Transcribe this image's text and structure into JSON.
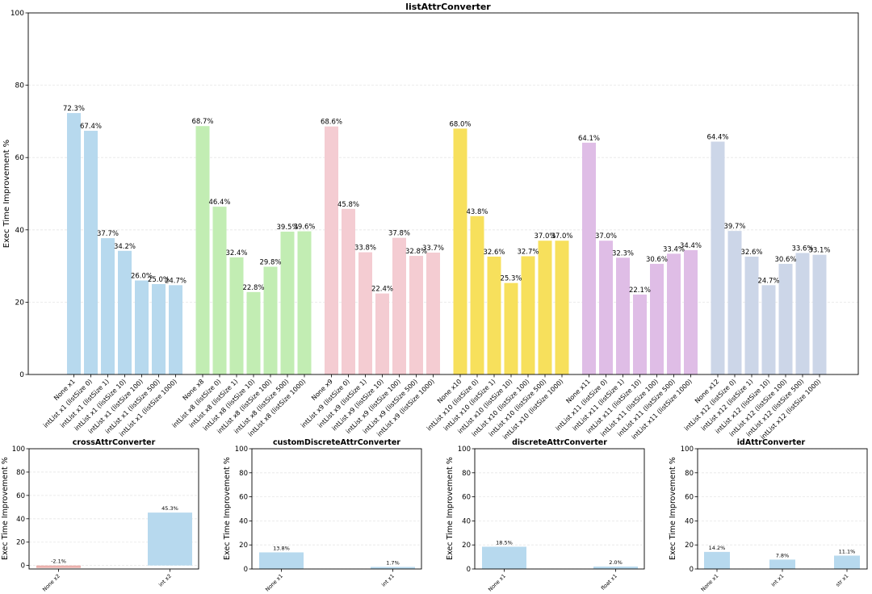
{
  "chart_data": [
    {
      "type": "bar",
      "title": "listAttrConverter",
      "xlabel": "",
      "ylabel": "Exec Time Improvement %",
      "ylim": [
        0,
        100
      ],
      "yticks": [
        "0",
        "20",
        "40",
        "60",
        "80",
        "100"
      ],
      "grid": true,
      "categories": [
        "None x1",
        "intList x1 (listSize 0)",
        "intList x1 (listSize 1)",
        "intList x1 (listSize 10)",
        "intList x1 (listSize 100)",
        "intList x1 (listSize 500)",
        "intList x1 (listSize 1000)",
        "None x8",
        "intList x8 (listSize 0)",
        "intList x8 (listSize 1)",
        "intList x8 (listSize 10)",
        "intList x8 (listSize 100)",
        "intList x8 (listSize 500)",
        "intList x8 (listSize 1000)",
        "None x9",
        "intList x9 (listSize 0)",
        "intList x9 (listSize 1)",
        "intList x9 (listSize 10)",
        "intList x9 (listSize 100)",
        "intList x9 (listSize 500)",
        "intList x9 (listSize 1000)",
        "None x10",
        "intList x10 (listSize 0)",
        "intList x10 (listSize 1)",
        "intList x10 (listSize 10)",
        "intList x10 (listSize 100)",
        "intList x10 (listSize 500)",
        "intList x10 (listSize 1000)",
        "None x11",
        "intList x11 (listSize 0)",
        "intList x11 (listSize 1)",
        "intList x11 (listSize 10)",
        "intList x11 (listSize 100)",
        "intList x11 (listSize 500)",
        "intList x11 (listSize 1000)",
        "None x12",
        "intList x12 (listSize 0)",
        "intList x12 (listSize 1)",
        "intList x12 (listSize 10)",
        "intList x12 (listSize 100)",
        "intList x12 (listSize 500)",
        "intList x12 (listSize 1000)"
      ],
      "values": [
        72.3,
        67.4,
        37.7,
        34.2,
        26.0,
        25.0,
        24.7,
        68.7,
        46.4,
        32.4,
        22.8,
        29.8,
        39.5,
        39.6,
        68.6,
        45.8,
        33.8,
        22.4,
        37.8,
        32.8,
        33.7,
        68.0,
        43.8,
        32.6,
        25.3,
        32.7,
        37.0,
        37.0,
        64.1,
        37.0,
        32.3,
        22.1,
        30.6,
        33.4,
        34.4,
        64.4,
        39.7,
        32.6,
        24.7,
        30.6,
        33.6,
        33.1
      ],
      "value_labels": [
        "72.3%",
        "67.4%",
        "37.7%",
        "34.2%",
        "26.0%",
        "25.0%",
        "24.7%",
        "68.7%",
        "46.4%",
        "32.4%",
        "22.8%",
        "29.8%",
        "39.5%",
        "39.6%",
        "68.6%",
        "45.8%",
        "33.8%",
        "22.4%",
        "37.8%",
        "32.8%",
        "33.7%",
        "68.0%",
        "43.8%",
        "32.6%",
        "25.3%",
        "32.7%",
        "37.0%",
        "37.0%",
        "64.1%",
        "37.0%",
        "32.3%",
        "22.1%",
        "30.6%",
        "33.4%",
        "34.4%",
        "64.4%",
        "39.7%",
        "32.6%",
        "24.7%",
        "30.6%",
        "33.6%",
        "33.1%"
      ],
      "group_colors": [
        "#b7d9ee",
        "#c2edb3",
        "#f4ccd2",
        "#f7e05c",
        "#dfbde6",
        "#ccd6e8"
      ],
      "group_size": 7
    },
    {
      "type": "bar",
      "title": "crossAttrConverter",
      "xlabel": "",
      "ylabel": "Exec Time Improvement %",
      "ylim": [
        -3,
        100
      ],
      "yticks": [
        "0",
        "20",
        "40",
        "60",
        "80",
        "100"
      ],
      "grid": true,
      "categories": [
        "None x2",
        "int x2"
      ],
      "values": [
        -2.1,
        45.3
      ],
      "value_labels": [
        "-2.1%",
        "45.3%"
      ],
      "colors": [
        "#ebb0ac",
        "#b7d9ee"
      ]
    },
    {
      "type": "bar",
      "title": "customDiscreteAttrConverter",
      "xlabel": "",
      "ylabel": "Exec Time Improvement %",
      "ylim": [
        0,
        100
      ],
      "yticks": [
        "0",
        "20",
        "40",
        "60",
        "80",
        "100"
      ],
      "grid": true,
      "categories": [
        "None x1",
        "int x1"
      ],
      "values": [
        13.8,
        1.7
      ],
      "value_labels": [
        "13.8%",
        "1.7%"
      ],
      "colors": [
        "#b7d9ee",
        "#b7d9ee"
      ]
    },
    {
      "type": "bar",
      "title": "discreteAttrConverter",
      "xlabel": "",
      "ylabel": "Exec Time Improvement %",
      "ylim": [
        0,
        100
      ],
      "yticks": [
        "0",
        "20",
        "40",
        "60",
        "80",
        "100"
      ],
      "grid": true,
      "categories": [
        "None x1",
        "float x1"
      ],
      "values": [
        18.5,
        2.0
      ],
      "value_labels": [
        "18.5%",
        "2.0%"
      ],
      "colors": [
        "#b7d9ee",
        "#b7d9ee"
      ]
    },
    {
      "type": "bar",
      "title": "idAttrConverter",
      "xlabel": "",
      "ylabel": "Exec Time Improvement %",
      "ylim": [
        0,
        100
      ],
      "yticks": [
        "0",
        "20",
        "40",
        "60",
        "80",
        "100"
      ],
      "grid": true,
      "categories": [
        "None x1",
        "int x1",
        "str x1"
      ],
      "values": [
        14.2,
        7.8,
        11.1
      ],
      "value_labels": [
        "14.2%",
        "7.8%",
        "11.1%"
      ],
      "colors": [
        "#b7d9ee",
        "#b7d9ee",
        "#b7d9ee"
      ]
    }
  ]
}
